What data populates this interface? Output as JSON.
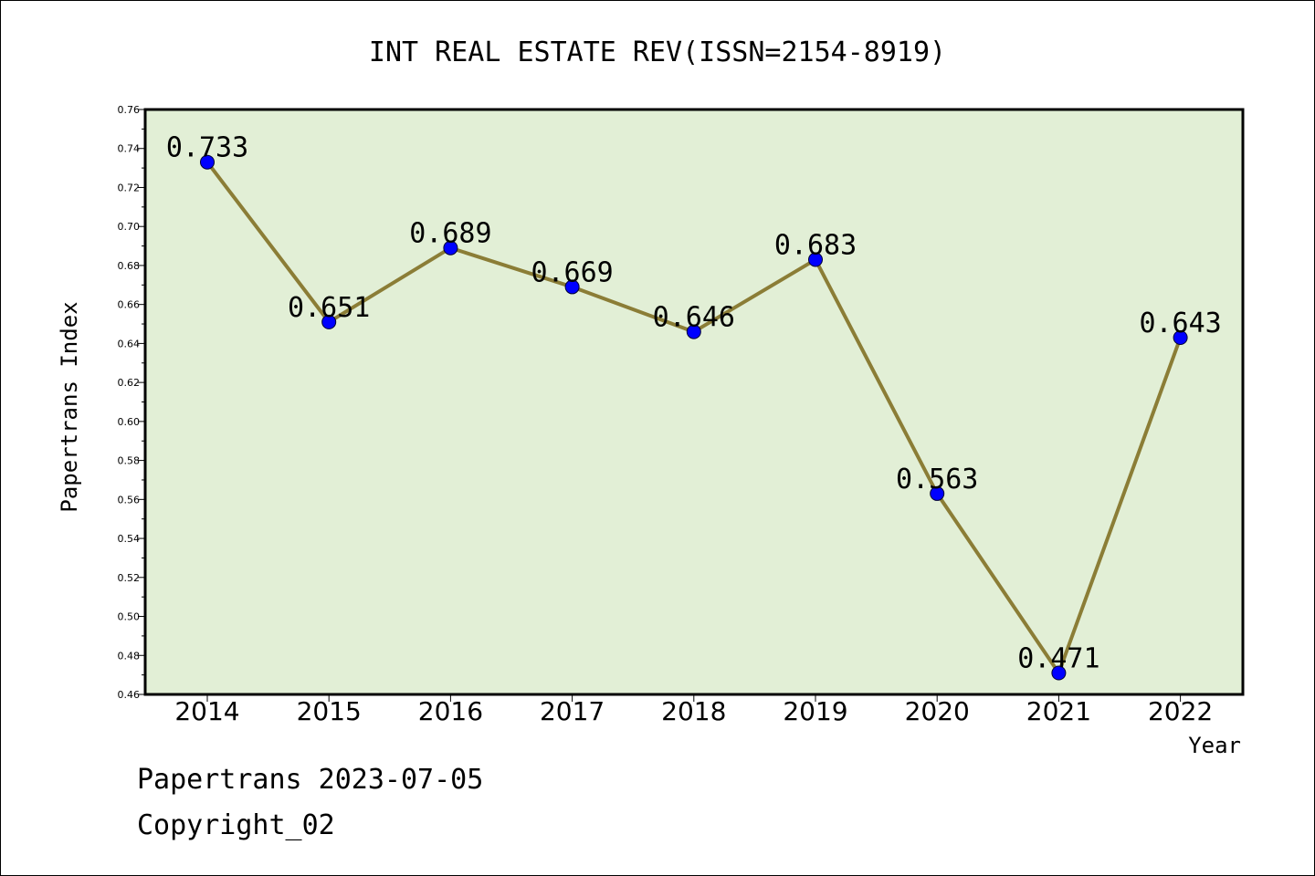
{
  "chart_data": {
    "type": "line",
    "title": "INT REAL ESTATE REV(ISSN=2154-8919)",
    "xlabel": "Year",
    "ylabel": "Papertrans Index",
    "categories": [
      "2014",
      "2015",
      "2016",
      "2017",
      "2018",
      "2019",
      "2020",
      "2021",
      "2022"
    ],
    "values": [
      0.733,
      0.651,
      0.689,
      0.669,
      0.646,
      0.683,
      0.563,
      0.471,
      0.643
    ],
    "data_labels": [
      "0.733",
      "0.651",
      "0.689",
      "0.669",
      "0.646",
      "0.683",
      "0.563",
      "0.471",
      "0.643"
    ],
    "ylim": [
      0.46,
      0.76
    ],
    "yticks": [
      "0.46",
      "0.48",
      "0.50",
      "0.52",
      "0.54",
      "0.56",
      "0.58",
      "0.60",
      "0.62",
      "0.64",
      "0.66",
      "0.68",
      "0.70",
      "0.72",
      "0.74",
      "0.76"
    ],
    "grid": false,
    "colors": {
      "plot_background": "#e2efd6",
      "line": "#8b7d36",
      "marker": "#0000ff"
    }
  },
  "footer": {
    "line1": "Papertrans 2023-07-05",
    "line2": "Copyright_02"
  }
}
